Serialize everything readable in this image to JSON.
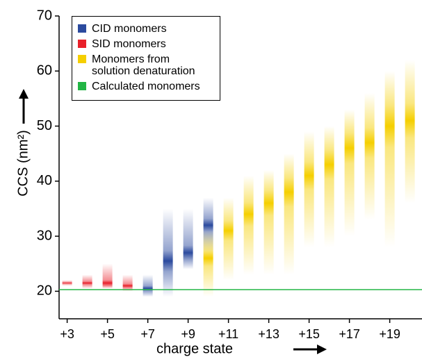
{
  "chart_data": {
    "type": "blob",
    "xlabel": "charge state",
    "ylabel": "CCS (nm²)",
    "xlim": [
      2.6,
      20.6
    ],
    "ylim": [
      15,
      70
    ],
    "xticks": [
      {
        "value": 3,
        "label": "+3"
      },
      {
        "value": 5,
        "label": "+5"
      },
      {
        "value": 7,
        "label": "+7"
      },
      {
        "value": 9,
        "label": "+9"
      },
      {
        "value": 11,
        "label": "+11"
      },
      {
        "value": 13,
        "label": "+13"
      },
      {
        "value": 15,
        "label": "+15"
      },
      {
        "value": 17,
        "label": "+17"
      },
      {
        "value": 19,
        "label": "+19"
      }
    ],
    "yticks": [
      20,
      30,
      40,
      50,
      60,
      70
    ],
    "series": [
      {
        "name": "CID monomers",
        "color": "#2b4a9e",
        "x": [
          7,
          8,
          9,
          10
        ],
        "values": [
          20.5,
          25.5,
          27,
          32
        ],
        "low": [
          19,
          19,
          24,
          27
        ],
        "high": [
          23,
          35,
          35,
          37
        ]
      },
      {
        "name": "SID monomers",
        "color": "#e8202a",
        "x": [
          3,
          4,
          5,
          6
        ],
        "values": [
          21.5,
          21.5,
          21.5,
          21
        ],
        "low": [
          21,
          20.5,
          20.5,
          20
        ],
        "high": [
          22,
          23,
          25,
          23
        ]
      },
      {
        "name": "Monomers from solution denaturation",
        "color": "#f5cf00",
        "x": [
          10,
          11,
          12,
          13,
          14,
          15,
          16,
          17,
          18,
          19,
          20
        ],
        "values": [
          26,
          31,
          34,
          36,
          38,
          41,
          43,
          46,
          47,
          50,
          51
        ],
        "low": [
          19,
          22,
          23,
          23,
          23,
          28,
          28,
          30,
          33,
          28,
          36
        ],
        "high": [
          31,
          37,
          41,
          42,
          45,
          49,
          50,
          53,
          56,
          60,
          62
        ]
      },
      {
        "name": "Calculated monomers",
        "color": "#22b545",
        "value": 20.3
      }
    ]
  }
}
